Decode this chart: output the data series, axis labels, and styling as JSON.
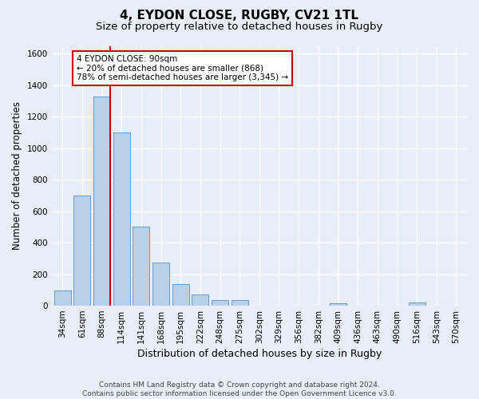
{
  "title": "4, EYDON CLOSE, RUGBY, CV21 1TL",
  "subtitle": "Size of property relative to detached houses in Rugby",
  "xlabel": "Distribution of detached houses by size in Rugby",
  "ylabel": "Number of detached properties",
  "bar_labels": [
    "34sqm",
    "61sqm",
    "88sqm",
    "114sqm",
    "141sqm",
    "168sqm",
    "195sqm",
    "222sqm",
    "248sqm",
    "275sqm",
    "302sqm",
    "329sqm",
    "356sqm",
    "382sqm",
    "409sqm",
    "436sqm",
    "463sqm",
    "490sqm",
    "516sqm",
    "543sqm",
    "570sqm"
  ],
  "bar_values": [
    95,
    700,
    1330,
    1100,
    500,
    275,
    135,
    70,
    35,
    35,
    0,
    0,
    0,
    0,
    15,
    0,
    0,
    0,
    20,
    0,
    0
  ],
  "bar_color": "#b8d0ea",
  "bar_edge_color": "#6699cc",
  "vline_color": "#cc0000",
  "annotation_text": "4 EYDON CLOSE: 90sqm\n← 20% of detached houses are smaller (868)\n78% of semi-detached houses are larger (3,345) →",
  "annotation_box_color": "#ffffff",
  "annotation_box_edge": "#cc0000",
  "ylim": [
    0,
    1650
  ],
  "yticks": [
    0,
    200,
    400,
    600,
    800,
    1000,
    1200,
    1400,
    1600
  ],
  "footer_line1": "Contains HM Land Registry data © Crown copyright and database right 2024.",
  "footer_line2": "Contains public sector information licensed under the Open Government Licence v3.0.",
  "bg_color": "#e8eef7",
  "grid_color": "#ffffff",
  "title_fontsize": 11,
  "subtitle_fontsize": 9.5,
  "ylabel_fontsize": 8.5,
  "xlabel_fontsize": 9,
  "tick_fontsize": 7.5,
  "footer_fontsize": 6.5
}
